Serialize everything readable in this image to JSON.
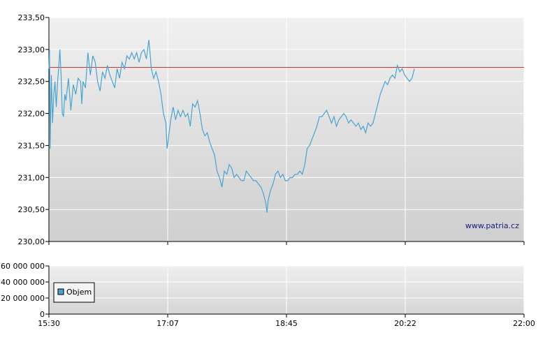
{
  "watermark": "www.patria.cz",
  "chart_data": [
    {
      "type": "line",
      "name": "price",
      "y_ticks": [
        "233,50",
        "233,00",
        "232,50",
        "232,00",
        "231,50",
        "231,00",
        "230,50",
        "230,00"
      ],
      "y_tick_values": [
        233.5,
        233.0,
        232.5,
        232.0,
        231.5,
        231.0,
        230.5,
        230.0
      ],
      "ylim": [
        230.0,
        233.5
      ],
      "x_ticks": [
        "15:30",
        "17:07",
        "18:45",
        "20:22",
        "22:00"
      ],
      "xlim_minutes": [
        930,
        1320
      ],
      "reference_line": {
        "value": 232.72,
        "color": "#cc3333"
      },
      "grid": true,
      "series": [
        {
          "color": "#4aa3d0",
          "points": [
            [
              930,
              232.7
            ],
            [
              930.5,
              233.0
            ],
            [
              931,
              231.45
            ],
            [
              932,
              232.6
            ],
            [
              933,
              231.85
            ],
            [
              934,
              232.3
            ],
            [
              935,
              232.5
            ],
            [
              936,
              232.1
            ],
            [
              937,
              232.45
            ],
            [
              938,
              232.7
            ],
            [
              939,
              233.0
            ],
            [
              940,
              232.6
            ],
            [
              941,
              232.0
            ],
            [
              942,
              231.95
            ],
            [
              943,
              232.3
            ],
            [
              944,
              232.2
            ],
            [
              946,
              232.55
            ],
            [
              948,
              232.05
            ],
            [
              950,
              232.45
            ],
            [
              952,
              232.3
            ],
            [
              954,
              232.55
            ],
            [
              956,
              232.5
            ],
            [
              957,
              232.15
            ],
            [
              958,
              232.5
            ],
            [
              960,
              232.4
            ],
            [
              962,
              232.95
            ],
            [
              964,
              232.6
            ],
            [
              966,
              232.9
            ],
            [
              968,
              232.8
            ],
            [
              970,
              232.5
            ],
            [
              972,
              232.35
            ],
            [
              974,
              232.65
            ],
            [
              976,
              232.55
            ],
            [
              978,
              232.75
            ],
            [
              980,
              232.6
            ],
            [
              982,
              232.5
            ],
            [
              984,
              232.4
            ],
            [
              986,
              232.7
            ],
            [
              988,
              232.55
            ],
            [
              990,
              232.8
            ],
            [
              992,
              232.7
            ],
            [
              994,
              232.9
            ],
            [
              996,
              232.85
            ],
            [
              998,
              232.95
            ],
            [
              1000,
              232.85
            ],
            [
              1002,
              232.95
            ],
            [
              1004,
              232.8
            ],
            [
              1006,
              232.95
            ],
            [
              1008,
              233.0
            ],
            [
              1010,
              232.85
            ],
            [
              1012,
              233.15
            ],
            [
              1013,
              232.95
            ],
            [
              1014,
              232.7
            ],
            [
              1016,
              232.55
            ],
            [
              1018,
              232.65
            ],
            [
              1020,
              232.5
            ],
            [
              1022,
              232.3
            ],
            [
              1024,
              232.0
            ],
            [
              1026,
              231.85
            ],
            [
              1027,
              231.45
            ],
            [
              1028,
              231.6
            ],
            [
              1030,
              231.9
            ],
            [
              1032,
              232.1
            ],
            [
              1034,
              231.9
            ],
            [
              1036,
              232.05
            ],
            [
              1038,
              231.95
            ],
            [
              1040,
              232.05
            ],
            [
              1042,
              231.95
            ],
            [
              1044,
              232.0
            ],
            [
              1046,
              231.8
            ],
            [
              1048,
              232.15
            ],
            [
              1050,
              232.1
            ],
            [
              1052,
              232.2
            ],
            [
              1054,
              232.0
            ],
            [
              1056,
              231.75
            ],
            [
              1058,
              231.65
            ],
            [
              1060,
              231.7
            ],
            [
              1062,
              231.55
            ],
            [
              1064,
              231.45
            ],
            [
              1066,
              231.35
            ],
            [
              1068,
              231.1
            ],
            [
              1070,
              231.0
            ],
            [
              1072,
              230.85
            ],
            [
              1074,
              231.1
            ],
            [
              1076,
              231.05
            ],
            [
              1078,
              231.2
            ],
            [
              1080,
              231.15
            ],
            [
              1082,
              231.0
            ],
            [
              1084,
              231.05
            ],
            [
              1086,
              231.0
            ],
            [
              1088,
              230.95
            ],
            [
              1090,
              230.95
            ],
            [
              1092,
              231.1
            ],
            [
              1094,
              231.05
            ],
            [
              1096,
              231.0
            ],
            [
              1098,
              230.95
            ],
            [
              1100,
              230.95
            ],
            [
              1102,
              230.9
            ],
            [
              1104,
              230.85
            ],
            [
              1106,
              230.75
            ],
            [
              1108,
              230.6
            ],
            [
              1109,
              230.45
            ],
            [
              1110,
              230.65
            ],
            [
              1112,
              230.8
            ],
            [
              1114,
              230.9
            ],
            [
              1116,
              231.05
            ],
            [
              1118,
              231.1
            ],
            [
              1120,
              231.0
            ],
            [
              1122,
              231.05
            ],
            [
              1124,
              230.95
            ],
            [
              1126,
              230.95
            ],
            [
              1128,
              231.0
            ],
            [
              1130,
              231.0
            ],
            [
              1132,
              231.05
            ],
            [
              1134,
              231.05
            ],
            [
              1136,
              231.1
            ],
            [
              1138,
              231.05
            ],
            [
              1140,
              231.2
            ],
            [
              1142,
              231.45
            ],
            [
              1144,
              231.5
            ],
            [
              1146,
              231.6
            ],
            [
              1148,
              231.7
            ],
            [
              1150,
              231.8
            ],
            [
              1152,
              231.95
            ],
            [
              1154,
              231.95
            ],
            [
              1156,
              232.0
            ],
            [
              1158,
              232.05
            ],
            [
              1160,
              231.95
            ],
            [
              1162,
              231.85
            ],
            [
              1164,
              231.95
            ],
            [
              1166,
              231.8
            ],
            [
              1168,
              231.9
            ],
            [
              1170,
              231.95
            ],
            [
              1172,
              232.0
            ],
            [
              1174,
              231.95
            ],
            [
              1176,
              231.85
            ],
            [
              1178,
              231.9
            ],
            [
              1180,
              231.85
            ],
            [
              1182,
              231.8
            ],
            [
              1184,
              231.85
            ],
            [
              1186,
              231.75
            ],
            [
              1188,
              231.8
            ],
            [
              1190,
              231.7
            ],
            [
              1192,
              231.85
            ],
            [
              1194,
              231.8
            ],
            [
              1196,
              231.85
            ],
            [
              1198,
              232.0
            ],
            [
              1200,
              232.15
            ],
            [
              1202,
              232.3
            ],
            [
              1204,
              232.4
            ],
            [
              1206,
              232.5
            ],
            [
              1208,
              232.45
            ],
            [
              1210,
              232.55
            ],
            [
              1212,
              232.6
            ],
            [
              1214,
              232.55
            ],
            [
              1216,
              232.75
            ],
            [
              1218,
              232.65
            ],
            [
              1220,
              232.7
            ],
            [
              1222,
              232.6
            ],
            [
              1224,
              232.55
            ],
            [
              1226,
              232.5
            ],
            [
              1228,
              232.55
            ],
            [
              1230,
              232.7
            ]
          ]
        }
      ]
    },
    {
      "type": "bar",
      "name": "volume",
      "y_ticks": [
        "60 000 000",
        "40 000 000",
        "20 000 000",
        "0"
      ],
      "y_tick_values": [
        60000000,
        40000000,
        20000000,
        0
      ],
      "ylim": [
        0,
        60000000
      ],
      "x_ticks": [
        "15:30",
        "17:07",
        "18:45",
        "20:22",
        "22:00"
      ],
      "grid": true,
      "legend": {
        "label": "Objem",
        "color": "#4aa3d0",
        "placement": "bottom-left"
      }
    }
  ]
}
